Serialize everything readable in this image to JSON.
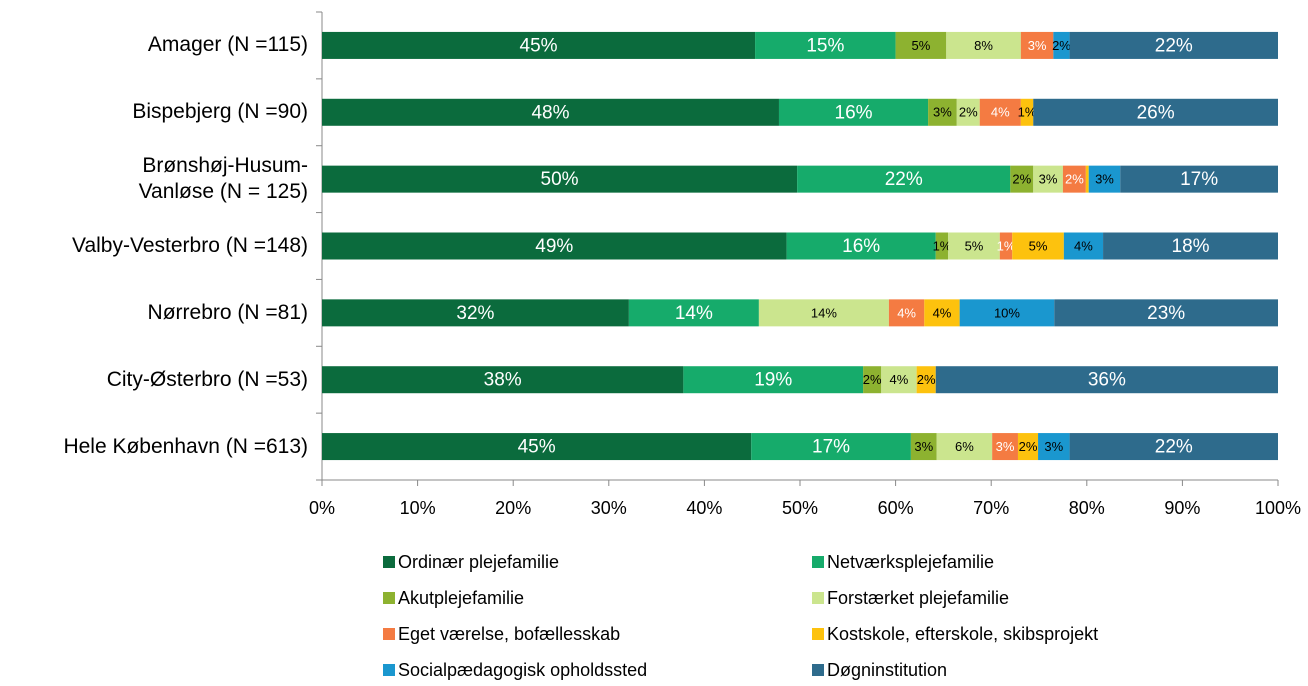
{
  "chart_data": {
    "type": "stacked-barh",
    "categories": [
      "Amager (N =115)",
      "Bispebjerg (N =90)",
      "Brønshøj-Husum-\nVanløse (N = 125)",
      "Valby-Vesterbro (N =148)",
      "Nørrebro (N =81)",
      "City-Østerbro (N =53)",
      "Hele København (N =613)"
    ],
    "series": [
      {
        "name": "Ordinær plejefamilie",
        "color": "#0b6b3d",
        "label_color": "#ffffff",
        "values": [
          45.3,
          47.8,
          49.7,
          48.6,
          32.1,
          37.8,
          44.9
        ],
        "value_labels": [
          "45%",
          "48%",
          "50%",
          "49%",
          "32%",
          "38%",
          "45%"
        ]
      },
      {
        "name": "Netværksplejefamilie",
        "color": "#16ab6b",
        "label_color": "#ffffff",
        "values": [
          14.7,
          15.6,
          22.3,
          15.6,
          13.6,
          18.8,
          16.7
        ],
        "value_labels": [
          "15%",
          "16%",
          "22%",
          "16%",
          "14%",
          "19%",
          "17%"
        ]
      },
      {
        "name": "Akutplejefamilie",
        "color": "#8db230",
        "label_color": "#000000",
        "values": [
          5.3,
          3.0,
          2.4,
          1.3,
          0,
          1.9,
          2.7
        ],
        "value_labels": [
          "5%",
          "3%",
          "2%",
          "1%",
          null,
          "2%",
          "3%"
        ]
      },
      {
        "name": "Forstærket plejefamilie",
        "color": "#cbe58e",
        "label_color": "#000000",
        "values": [
          7.8,
          2.4,
          3.1,
          5.4,
          13.6,
          3.7,
          5.8
        ],
        "value_labels": [
          "8%",
          "2%",
          "3%",
          "5%",
          "14%",
          "4%",
          "6%"
        ]
      },
      {
        "name": "Eget værelse, bofællesskab",
        "color": "#f47b42",
        "label_color": "#ffffff",
        "values": [
          3.4,
          4.3,
          2.4,
          1.3,
          3.7,
          0,
          2.7
        ],
        "value_labels": [
          "3%",
          "4%",
          "2%",
          "1%",
          "4%",
          null,
          "3%"
        ]
      },
      {
        "name": "Kostskole, efterskole, skibsprojekt",
        "color": "#fdc20e",
        "label_color": "#000000",
        "values": [
          0,
          1.3,
          0.3,
          5.4,
          3.7,
          2.0,
          2.1
        ],
        "value_labels": [
          null,
          "1%",
          null,
          "5%",
          "4%",
          "2%",
          "2%"
        ]
      },
      {
        "name": "Socialpædagogisk opholdssted",
        "color": "#1a97cf",
        "label_color": "#000000",
        "values": [
          1.7,
          0,
          3.3,
          4.1,
          9.9,
          0,
          3.3
        ],
        "value_labels": [
          "2%",
          null,
          "3%",
          "4%",
          "10%",
          null,
          "3%"
        ]
      },
      {
        "name": "Døgninstitution",
        "color": "#2e6b8c",
        "label_color": "#ffffff",
        "values": [
          21.8,
          25.6,
          16.5,
          18.3,
          23.4,
          35.8,
          21.8
        ],
        "value_labels": [
          "22%",
          "26%",
          "17%",
          "18%",
          "23%",
          "36%",
          "22%"
        ]
      }
    ],
    "xlim": [
      0,
      100
    ],
    "xticks": [
      {
        "value": 0,
        "label": "0%"
      },
      {
        "value": 10,
        "label": "10%"
      },
      {
        "value": 20,
        "label": "20%"
      },
      {
        "value": 30,
        "label": "30%"
      },
      {
        "value": 40,
        "label": "40%"
      },
      {
        "value": 50,
        "label": "50%"
      },
      {
        "value": 60,
        "label": "60%"
      },
      {
        "value": 70,
        "label": "70%"
      },
      {
        "value": 80,
        "label": "80%"
      },
      {
        "value": 90,
        "label": "90%"
      },
      {
        "value": 100,
        "label": "100%"
      }
    ],
    "legend": "bottom"
  }
}
